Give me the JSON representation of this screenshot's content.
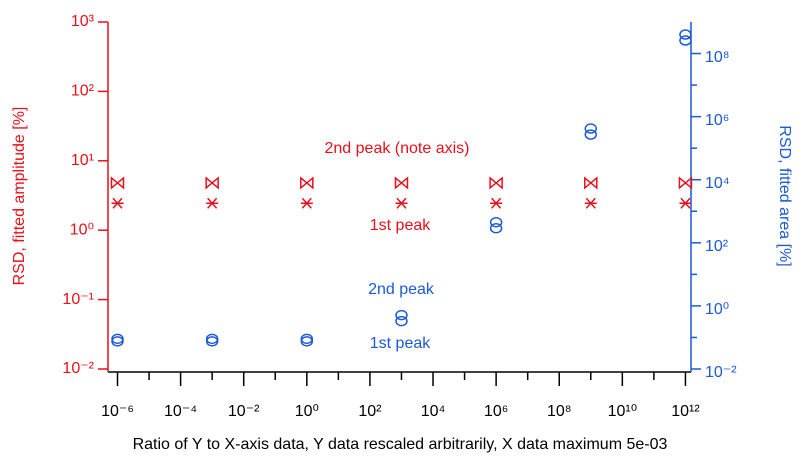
{
  "chart_data": {
    "type": "scatter",
    "xlabel": "Ratio of Y to X-axis data, Y data rescaled arbitrarily, X data maximum 5e-03",
    "ylabel": "RSD, fitted amplitude [%]",
    "y2label": "RSD, fitted area [%]",
    "xscale": "log",
    "yscale": "log",
    "y2scale": "log",
    "x": [
      1e-06,
      0.001,
      1,
      1000.0,
      1000000.0,
      1000000000.0,
      1000000000000.0
    ],
    "xlim": [
      5e-07,
      1500000000000.0
    ],
    "xticks": [
      {
        "value": 1e-06,
        "label": "10⁻⁶"
      },
      {
        "value": 0.0001,
        "label": "10⁻⁴"
      },
      {
        "value": 0.01,
        "label": "10⁻²"
      },
      {
        "value": 1,
        "label": "10⁰"
      },
      {
        "value": 100.0,
        "label": "10²"
      },
      {
        "value": 10000.0,
        "label": "10⁴"
      },
      {
        "value": 1000000.0,
        "label": "10⁶"
      },
      {
        "value": 100000000.0,
        "label": "10⁸"
      },
      {
        "value": 10000000000.0,
        "label": "10¹⁰"
      },
      {
        "value": 1000000000000.0,
        "label": "10¹²"
      }
    ],
    "xminorticks": [
      1e-05,
      0.001,
      0.1,
      10,
      1000.0,
      100000.0,
      10000000.0,
      1000000000.0,
      100000000000.0
    ],
    "ylim": [
      0.01,
      1000
    ],
    "yticks": [
      {
        "value": 0.01,
        "label": "10⁻²"
      },
      {
        "value": 0.1,
        "label": "10⁻¹"
      },
      {
        "value": 1,
        "label": "10⁰"
      },
      {
        "value": 10,
        "label": "10¹"
      },
      {
        "value": 100,
        "label": "10²"
      },
      {
        "value": 1000,
        "label": "10³"
      }
    ],
    "y2lim": [
      0.01,
      1000000000.0
    ],
    "y2ticks": [
      {
        "value": 0.01,
        "label": "10⁻²"
      },
      {
        "value": 1,
        "label": "10⁰"
      },
      {
        "value": 100,
        "label": "10²"
      },
      {
        "value": 10000.0,
        "label": "10⁴"
      },
      {
        "value": 1000000.0,
        "label": "10⁶"
      },
      {
        "value": 100000000.0,
        "label": "10⁸"
      }
    ],
    "y2minorticks": [
      0.1,
      10,
      1000,
      100000.0,
      10000000.0
    ],
    "ycolor": "#e8101a",
    "y2color": "#1a5ad8",
    "series": [
      {
        "name": "2nd peak (note axis)",
        "color": "#e8101a",
        "marker": "bowtie",
        "values": [
          4.8,
          4.8,
          4.8,
          4.8,
          4.8,
          4.8,
          4.8
        ]
      },
      {
        "name": "1st peak",
        "color": "#e8101a",
        "marker": "asterisk",
        "values": [
          2.45,
          2.45,
          2.45,
          2.45,
          2.45,
          2.45,
          2.45
        ]
      },
      {
        "name": "2nd peak",
        "color": "#1a5ad8",
        "marker": "circle",
        "axis": "y2",
        "values": [
          0.09,
          0.09,
          0.09,
          0.51,
          450,
          420000,
          400000000
        ]
      },
      {
        "name": "1st peak",
        "color": "#1a5ad8",
        "marker": "circle",
        "axis": "y2",
        "values": [
          0.075,
          0.075,
          0.075,
          0.33,
          290,
          270000,
          260000000
        ]
      }
    ]
  }
}
